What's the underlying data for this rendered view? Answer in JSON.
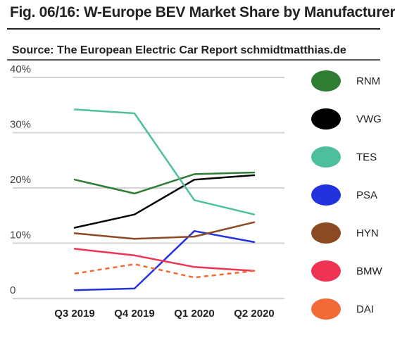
{
  "title": "Fig. 06/16: W-Europe BEV  Market Share by Manufacturer",
  "source": "Source: The European Electric Car Report schmidtmatthias.de",
  "chart_data": {
    "type": "line",
    "categories": [
      "Q3 2019",
      "Q4 2019",
      "Q1 2020",
      "Q2 2020"
    ],
    "y_ticks": [
      "0",
      "10%",
      "20%",
      "30%",
      "40%"
    ],
    "y_tick_values": [
      0,
      10,
      20,
      30,
      40
    ],
    "ylim": [
      0,
      40
    ],
    "grid": true,
    "legend_position": "right",
    "series": [
      {
        "name": "RNM",
        "color": "#2e7d32",
        "dash": false,
        "values": [
          21.5,
          19.0,
          22.5,
          22.8
        ]
      },
      {
        "name": "VWG",
        "color": "#000000",
        "dash": false,
        "values": [
          12.8,
          15.2,
          21.5,
          22.3
        ]
      },
      {
        "name": "TES",
        "color": "#4dbf9f",
        "dash": false,
        "values": [
          34.2,
          33.5,
          17.8,
          15.2
        ]
      },
      {
        "name": "PSA",
        "color": "#2233dd",
        "dash": false,
        "values": [
          1.5,
          1.8,
          12.2,
          10.2
        ]
      },
      {
        "name": "HYN",
        "color": "#8b4a22",
        "dash": false,
        "values": [
          11.8,
          10.8,
          11.2,
          13.8
        ]
      },
      {
        "name": "BMW",
        "color": "#ee3355",
        "dash": false,
        "values": [
          9.0,
          7.8,
          5.7,
          5.0
        ]
      },
      {
        "name": "DAI",
        "color": "#f26a35",
        "dash": true,
        "values": [
          4.5,
          6.2,
          3.8,
          5.0
        ]
      }
    ]
  }
}
